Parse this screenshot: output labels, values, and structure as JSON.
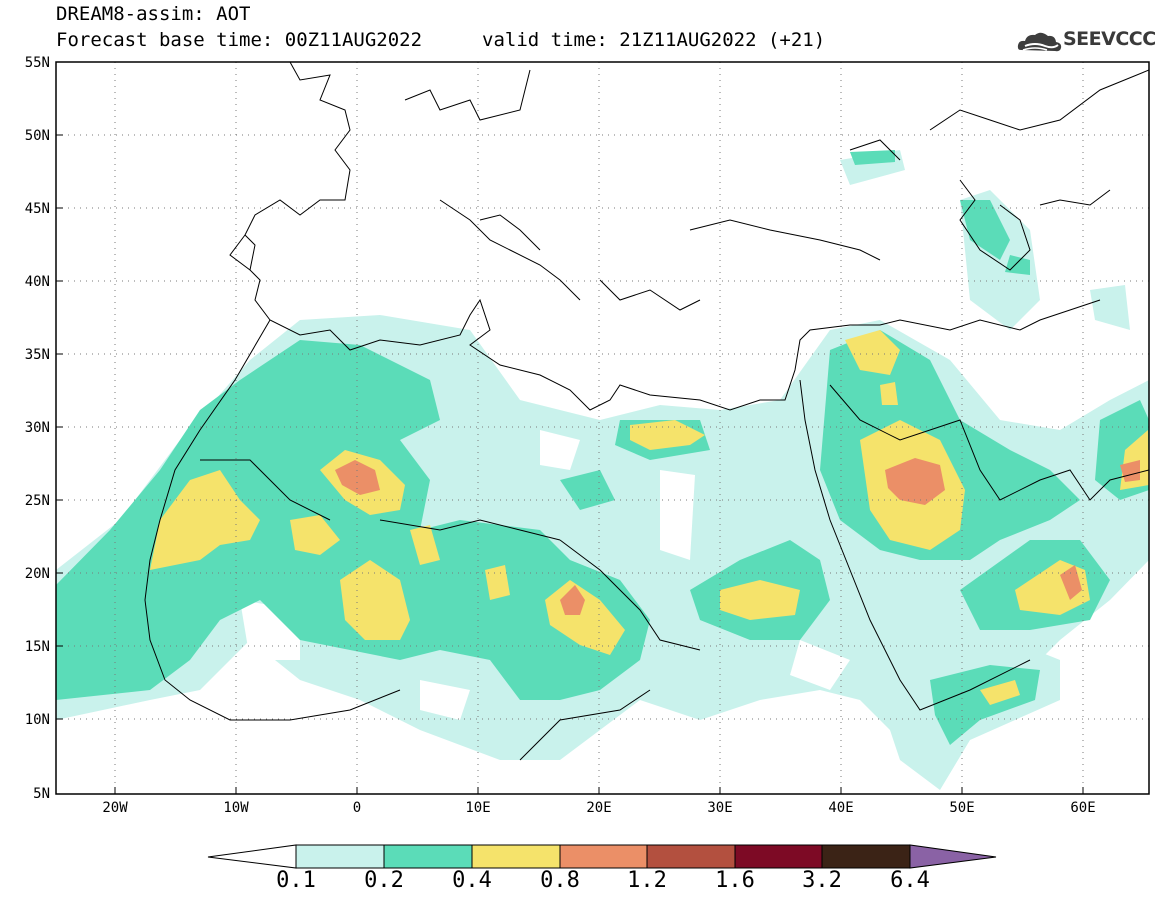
{
  "header": {
    "title": "DREAM8-assim: AOT",
    "base_time": "Forecast base time: 00Z11AUG2022",
    "valid_time": "valid time: 21Z11AUG2022 (+21)",
    "logo_text": "SEEVCCC"
  },
  "map": {
    "lat_labels": [
      "55N",
      "50N",
      "45N",
      "40N",
      "35N",
      "30N",
      "25N",
      "20N",
      "15N",
      "10N",
      "5N"
    ],
    "lon_labels": [
      "20W",
      "10W",
      "0",
      "10E",
      "20E",
      "30E",
      "40E",
      "50E",
      "60E"
    ],
    "frame_color": "#000000",
    "grid_style": "dotted"
  },
  "colorbar": {
    "levels": [
      "0.1",
      "0.2",
      "0.4",
      "0.8",
      "1.2",
      "1.6",
      "3.2",
      "6.4"
    ],
    "colors": [
      "#c9f2ec",
      "#5bdcb8",
      "#f5e36b",
      "#eb8f67",
      "#b3503f",
      "#7d0a25",
      "#3b2316",
      "#8a62a5"
    ],
    "under_color": "#ffffff"
  }
}
